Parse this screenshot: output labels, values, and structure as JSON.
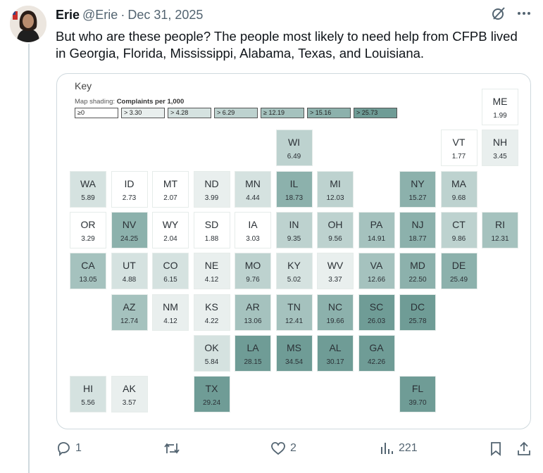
{
  "post": {
    "author_name": "Erie",
    "handle": "@Erie",
    "separator": "·",
    "date": "Dec 31, 2025",
    "text": "But who are these people? The people most likely to need help from CFPB lived in Georgia, Florida, Mississippi, Alabama, Texas, and Louisiana.",
    "more_icon": "more-horizontal-icon",
    "grok_icon": "slash-circle-icon"
  },
  "map": {
    "key_title": "Key",
    "shading_label": "Map shading:",
    "shading_metric": "Complaints per 1,000",
    "legend": [
      {
        "label": "≥0",
        "color": "#ffffff"
      },
      {
        "label": "> 3.30",
        "color": "#e9efee"
      },
      {
        "label": "> 4.28",
        "color": "#d5e2e0"
      },
      {
        "label": "> 6.29",
        "color": "#bdd2cf"
      },
      {
        "label": "≥ 12.19",
        "color": "#a5c2be"
      },
      {
        "label": "> 15.16",
        "color": "#8cb1ac"
      },
      {
        "label": "> 25.73",
        "color": "#6f9c96"
      }
    ],
    "states": [
      {
        "abbr": "ME",
        "value": "1.99",
        "color": "#ffffff"
      },
      {
        "abbr": "WI",
        "value": "6.49",
        "color": "#bdd2cf"
      },
      {
        "abbr": "VT",
        "value": "1.77",
        "color": "#ffffff"
      },
      {
        "abbr": "NH",
        "value": "3.45",
        "color": "#e9efee"
      },
      {
        "abbr": "WA",
        "value": "5.89",
        "color": "#d5e2e0"
      },
      {
        "abbr": "ID",
        "value": "2.73",
        "color": "#ffffff"
      },
      {
        "abbr": "MT",
        "value": "2.07",
        "color": "#ffffff"
      },
      {
        "abbr": "ND",
        "value": "3.99",
        "color": "#e9efee"
      },
      {
        "abbr": "MN",
        "value": "4.44",
        "color": "#d5e2e0"
      },
      {
        "abbr": "IL",
        "value": "18.73",
        "color": "#8cb1ac"
      },
      {
        "abbr": "MI",
        "value": "12.03",
        "color": "#bdd2cf"
      },
      {
        "abbr": "NY",
        "value": "15.27",
        "color": "#8cb1ac"
      },
      {
        "abbr": "MA",
        "value": "9.68",
        "color": "#bdd2cf"
      },
      {
        "abbr": "OR",
        "value": "3.29",
        "color": "#ffffff"
      },
      {
        "abbr": "NV",
        "value": "24.25",
        "color": "#8cb1ac"
      },
      {
        "abbr": "WY",
        "value": "2.04",
        "color": "#ffffff"
      },
      {
        "abbr": "SD",
        "value": "1.88",
        "color": "#ffffff"
      },
      {
        "abbr": "IA",
        "value": "3.03",
        "color": "#ffffff"
      },
      {
        "abbr": "IN",
        "value": "9.35",
        "color": "#bdd2cf"
      },
      {
        "abbr": "OH",
        "value": "9.56",
        "color": "#bdd2cf"
      },
      {
        "abbr": "PA",
        "value": "14.91",
        "color": "#a5c2be"
      },
      {
        "abbr": "NJ",
        "value": "18.77",
        "color": "#8cb1ac"
      },
      {
        "abbr": "CT",
        "value": "9.86",
        "color": "#bdd2cf"
      },
      {
        "abbr": "RI",
        "value": "12.31",
        "color": "#a5c2be"
      },
      {
        "abbr": "CA",
        "value": "13.05",
        "color": "#a5c2be"
      },
      {
        "abbr": "UT",
        "value": "4.88",
        "color": "#d5e2e0"
      },
      {
        "abbr": "CO",
        "value": "6.15",
        "color": "#d5e2e0"
      },
      {
        "abbr": "NE",
        "value": "4.12",
        "color": "#e9efee"
      },
      {
        "abbr": "MO",
        "value": "9.76",
        "color": "#bdd2cf"
      },
      {
        "abbr": "KY",
        "value": "5.02",
        "color": "#d5e2e0"
      },
      {
        "abbr": "WV",
        "value": "3.37",
        "color": "#e9efee"
      },
      {
        "abbr": "VA",
        "value": "12.66",
        "color": "#a5c2be"
      },
      {
        "abbr": "MD",
        "value": "22.50",
        "color": "#8cb1ac"
      },
      {
        "abbr": "DE",
        "value": "25.49",
        "color": "#8cb1ac"
      },
      {
        "abbr": "AZ",
        "value": "12.74",
        "color": "#a5c2be"
      },
      {
        "abbr": "NM",
        "value": "4.12",
        "color": "#e9efee"
      },
      {
        "abbr": "KS",
        "value": "4.22",
        "color": "#e9efee"
      },
      {
        "abbr": "AR",
        "value": "13.06",
        "color": "#a5c2be"
      },
      {
        "abbr": "TN",
        "value": "12.41",
        "color": "#a5c2be"
      },
      {
        "abbr": "NC",
        "value": "19.66",
        "color": "#8cb1ac"
      },
      {
        "abbr": "SC",
        "value": "26.03",
        "color": "#6f9c96"
      },
      {
        "abbr": "DC",
        "value": "25.78",
        "color": "#6f9c96"
      },
      {
        "abbr": "OK",
        "value": "5.84",
        "color": "#d5e2e0"
      },
      {
        "abbr": "LA",
        "value": "28.15",
        "color": "#6f9c96"
      },
      {
        "abbr": "MS",
        "value": "34.54",
        "color": "#6f9c96"
      },
      {
        "abbr": "AL",
        "value": "30.17",
        "color": "#6f9c96"
      },
      {
        "abbr": "GA",
        "value": "42.26",
        "color": "#6f9c96"
      },
      {
        "abbr": "HI",
        "value": "5.56",
        "color": "#d5e2e0"
      },
      {
        "abbr": "AK",
        "value": "3.57",
        "color": "#e9efee"
      },
      {
        "abbr": "TX",
        "value": "29.24",
        "color": "#6f9c96"
      },
      {
        "abbr": "FL",
        "value": "39.70",
        "color": "#6f9c96"
      }
    ]
  },
  "actions": {
    "replies": "1",
    "retweets": "",
    "likes": "2",
    "views": "221"
  },
  "icons": {
    "reply": "reply-icon",
    "retweet": "retweet-icon",
    "like": "heart-icon",
    "views": "views-chart-icon",
    "bookmark": "bookmark-icon",
    "share": "share-icon"
  }
}
